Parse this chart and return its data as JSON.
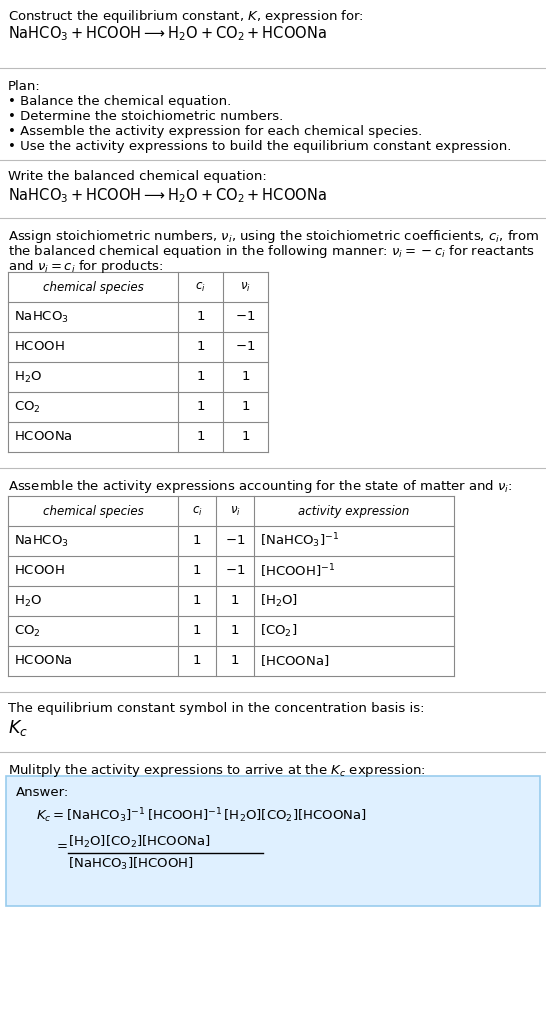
{
  "bg_color": "#ffffff",
  "text_color": "#000000",
  "title_line1": "Construct the equilibrium constant, $K$, expression for:",
  "title_line2": "$\\mathrm{NaHCO_3 + HCOOH} \\longrightarrow \\mathrm{H_2O + CO_2 + HCOONa}$",
  "plan_header": "Plan:",
  "plan_items": [
    "\\u2022 Balance the chemical equation.",
    "\\u2022 Determine the stoichiometric numbers.",
    "\\u2022 Assemble the activity expression for each chemical species.",
    "\\u2022 Use the activity expressions to build the equilibrium constant expression."
  ],
  "balanced_header": "Write the balanced chemical equation:",
  "balanced_eq": "$\\mathrm{NaHCO_3 + HCOOH} \\longrightarrow \\mathrm{H_2O + CO_2 + HCOONa}$",
  "stoich_text": "Assign stoichiometric numbers, $\\nu_i$, using the stoichiometric coefficients, $c_i$, from\nthe balanced chemical equation in the following manner: $\\nu_i = -c_i$ for reactants\nand $\\nu_i = c_i$ for products:",
  "table1_species": [
    "$\\mathrm{NaHCO_3}$",
    "$\\mathrm{HCOOH}$",
    "$\\mathrm{H_2O}$",
    "$\\mathrm{CO_2}$",
    "$\\mathrm{HCOONa}$"
  ],
  "table1_ci": [
    "1",
    "1",
    "1",
    "1",
    "1"
  ],
  "table1_ni": [
    "$-1$",
    "$-1$",
    "1",
    "1",
    "1"
  ],
  "activity_text": "Assemble the activity expressions accounting for the state of matter and $\\nu_i$:",
  "table2_species": [
    "$\\mathrm{NaHCO_3}$",
    "$\\mathrm{HCOOH}$",
    "$\\mathrm{H_2O}$",
    "$\\mathrm{CO_2}$",
    "$\\mathrm{HCOONa}$"
  ],
  "table2_ci": [
    "1",
    "1",
    "1",
    "1",
    "1"
  ],
  "table2_ni": [
    "$-1$",
    "$-1$",
    "1",
    "1",
    "1"
  ],
  "table2_act": [
    "$[\\mathrm{NaHCO_3}]^{-1}$",
    "$[\\mathrm{HCOOH}]^{-1}$",
    "$[\\mathrm{H_2O}]$",
    "$[\\mathrm{CO_2}]$",
    "$[\\mathrm{HCOONa}]$"
  ],
  "kc_text": "The equilibrium constant symbol in the concentration basis is:",
  "kc_symbol": "$K_c$",
  "multiply_text": "Mulitply the activity expressions to arrive at the $K_c$ expression:",
  "answer_label": "Answer:",
  "ans_eq": "$K_c = [\\mathrm{NaHCO_3}]^{-1}\\,[\\mathrm{HCOOH}]^{-1}\\,[\\mathrm{H_2O}][\\mathrm{CO_2}][\\mathrm{HCOONa}]$",
  "ans_numer": "$[\\mathrm{H_2O}][\\mathrm{CO_2}][\\mathrm{HCOONa}]$",
  "ans_denom": "$[\\mathrm{NaHCO_3}][\\mathrm{HCOOH}]$",
  "answer_box_color": "#dff0ff",
  "answer_box_border": "#99ccee",
  "table_color": "#888888",
  "sep_color": "#bbbbbb",
  "font_size": 9.5,
  "small_font": 8.5
}
